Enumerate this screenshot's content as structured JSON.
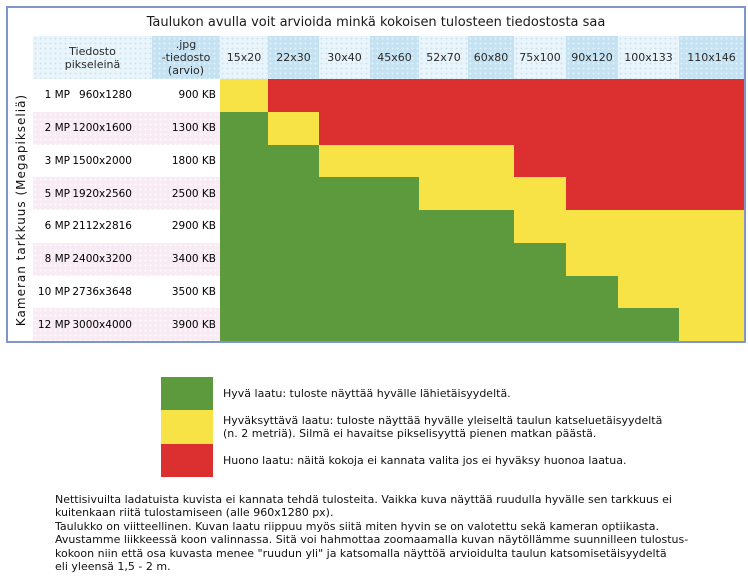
{
  "table": {
    "header_pixels": "Tiedosto\npikseleinä",
    "header_jpg": ".jpg\n-tiedosto\n(arvio)"
  },
  "chart_data": {
    "type": "heatmap",
    "title": "Taulukon avulla voit arvioida minkä kokoisen tulosteen tiedostosta saa",
    "ylabel": "Kameran tarkkuus (Megapikseliä)",
    "x_categories": [
      "15x20",
      "22x30",
      "30x40",
      "45x60",
      "52x70",
      "60x80",
      "75x100",
      "90x120",
      "100x133",
      "110x146"
    ],
    "y_categories": [
      "1 MP",
      "2 MP",
      "3 MP",
      "5 MP",
      "6 MP",
      "8 MP",
      "10 MP",
      "12 MP"
    ],
    "rows": [
      {
        "mp": "1 MP",
        "pixels": "960x1280",
        "jpg_size": "900 KB",
        "quality": [
          "Y",
          "R",
          "R",
          "R",
          "R",
          "R",
          "R",
          "R",
          "R",
          "R"
        ]
      },
      {
        "mp": "2 MP",
        "pixels": "1200x1600",
        "jpg_size": "1300 KB",
        "quality": [
          "G",
          "Y",
          "R",
          "R",
          "R",
          "R",
          "R",
          "R",
          "R",
          "R"
        ]
      },
      {
        "mp": "3 MP",
        "pixels": "1500x2000",
        "jpg_size": "1800 KB",
        "quality": [
          "G",
          "G",
          "Y",
          "Y",
          "Y",
          "Y",
          "R",
          "R",
          "R",
          "R"
        ]
      },
      {
        "mp": "5 MP",
        "pixels": "1920x2560",
        "jpg_size": "2500 KB",
        "quality": [
          "G",
          "G",
          "G",
          "G",
          "Y",
          "Y",
          "Y",
          "R",
          "R",
          "R"
        ]
      },
      {
        "mp": "6 MP",
        "pixels": "2112x2816",
        "jpg_size": "2900 KB",
        "quality": [
          "G",
          "G",
          "G",
          "G",
          "G",
          "G",
          "Y",
          "Y",
          "Y",
          "Y"
        ]
      },
      {
        "mp": "8 MP",
        "pixels": "2400x3200",
        "jpg_size": "3400 KB",
        "quality": [
          "G",
          "G",
          "G",
          "G",
          "G",
          "G",
          "G",
          "Y",
          "Y",
          "Y"
        ]
      },
      {
        "mp": "10 MP",
        "pixels": "2736x3648",
        "jpg_size": "3500 KB",
        "quality": [
          "G",
          "G",
          "G",
          "G",
          "G",
          "G",
          "G",
          "G",
          "Y",
          "Y"
        ]
      },
      {
        "mp": "12 MP",
        "pixels": "3000x4000",
        "jpg_size": "3900 KB",
        "quality": [
          "G",
          "G",
          "G",
          "G",
          "G",
          "G",
          "G",
          "G",
          "G",
          "Y"
        ]
      }
    ],
    "quality_levels": {
      "G": "hyvä laatu",
      "Y": "hyväksyttävä laatu",
      "R": "huono laatu"
    }
  },
  "colors": {
    "G": "#5d9a3e",
    "Y": "#f8e347",
    "R": "#dc2f2f",
    "border_blue": "#8095c8",
    "header_light": "#eaf5fb",
    "header_dark": "#c5e2f2",
    "row_pink": "#f8ebf3"
  },
  "legend": [
    {
      "key": "G",
      "hex": "#5d9a3e",
      "label": "Hyvä laatu: tuloste näyttää hyvälle lähietäisyydeltä."
    },
    {
      "key": "Y",
      "hex": "#f8e347",
      "label": "Hyväksyttävä laatu: tuloste näyttää hyvälle yleiseltä taulun katseluetäisyydeltä\n(n. 2 metriä). Silmä ei havaitse pikselisyyttä pienen matkan päästä."
    },
    {
      "key": "R",
      "hex": "#dc2f2f",
      "label": "Huono laatu: näitä kokoja ei kannata valita jos ei hyväksy huonoa laatua."
    }
  ],
  "footer": {
    "lines": [
      "Nettisivuilta ladatuista kuvista ei kannata tehdä tulosteita. Vaikka kuva näyttää ruudulla hyvälle sen tarkkuus ei",
      "kuitenkaan riitä tulostamiseen (alle 960x1280 px).",
      "Taulukko on viitteellinen. Kuvan laatu riippuu myös siitä miten hyvin se on valotettu sekä kameran optiikasta.",
      "Avustamme liikkeessä koon valinnassa. Sitä voi hahmottaa zoomaamalla kuvan näytöllämme suunnilleen tulostus-",
      "kokoon niin että osa kuvasta menee \"ruudun yli\" ja katsomalla näyttöä arvioidulta taulun katsomisetäisyydeltä",
      "eli yleensä 1,5 - 2 m."
    ]
  }
}
